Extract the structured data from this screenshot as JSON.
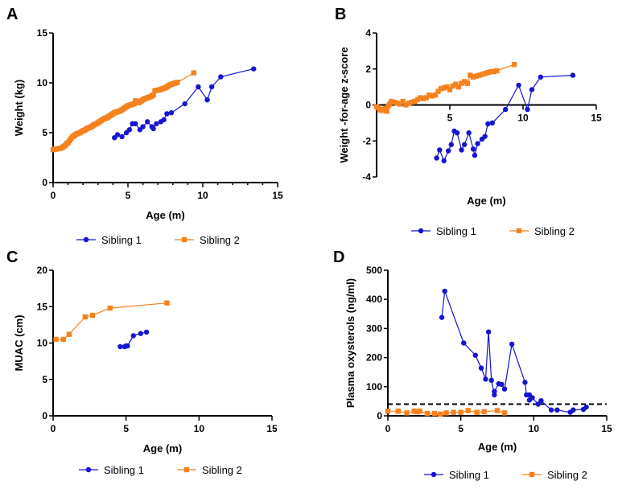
{
  "colors": {
    "sibling1": "#1414d2",
    "sibling2": "#f5821e",
    "axis": "#000000",
    "threshold": "#000000"
  },
  "legend": {
    "items": [
      {
        "label": "Sibling 1",
        "marker": "circle",
        "color": "#1414d2"
      },
      {
        "label": "Sibling 2",
        "marker": "square",
        "color": "#f5821e"
      }
    ]
  },
  "chart_data": [
    {
      "panel": "A",
      "type": "line",
      "title": "",
      "xlabel": "Age (m)",
      "ylabel": "Weight (kg)",
      "xlim": [
        0,
        15
      ],
      "ylim": [
        0,
        15
      ],
      "xticks": [
        0,
        5,
        10,
        15
      ],
      "yticks": [
        0,
        5,
        10,
        15
      ],
      "x_minor_ticks": 1,
      "legend_position": "bottom",
      "series": [
        {
          "name": "Sibling 1",
          "marker": "circle",
          "x": [
            4.1,
            4.3,
            4.6,
            4.9,
            5.1,
            5.3,
            5.5,
            5.8,
            6.0,
            6.3,
            6.6,
            6.7,
            6.9,
            7.2,
            7.4,
            7.6,
            7.9,
            8.8,
            9.7,
            10.3,
            10.6,
            11.2,
            13.4
          ],
          "y": [
            4.5,
            4.8,
            4.6,
            5.0,
            5.3,
            5.9,
            5.9,
            5.3,
            5.6,
            6.1,
            5.6,
            5.4,
            5.9,
            6.1,
            6.3,
            6.9,
            7.0,
            7.9,
            9.6,
            8.3,
            9.6,
            10.6,
            11.4
          ]
        },
        {
          "name": "Sibling 2",
          "marker": "square",
          "x": [
            0.0,
            0.1,
            0.2,
            0.3,
            0.4,
            0.5,
            0.6,
            0.7,
            0.8,
            0.9,
            1.0,
            1.1,
            1.2,
            1.3,
            1.4,
            1.5,
            1.6,
            1.7,
            1.8,
            1.9,
            2.0,
            2.1,
            2.2,
            2.3,
            2.4,
            2.5,
            2.6,
            2.7,
            2.8,
            2.9,
            3.0,
            3.1,
            3.2,
            3.3,
            3.4,
            3.5,
            3.6,
            3.7,
            3.8,
            3.9,
            4.0,
            4.1,
            4.2,
            4.3,
            4.4,
            4.5,
            4.6,
            4.7,
            4.8,
            4.9,
            5.0,
            5.1,
            5.2,
            5.3,
            5.4,
            5.5,
            5.6,
            5.7,
            5.8,
            5.9,
            6.0,
            6.1,
            6.2,
            6.3,
            6.4,
            6.5,
            6.6,
            6.7,
            6.8,
            6.9,
            7.0,
            7.1,
            7.2,
            7.3,
            7.4,
            7.5,
            7.6,
            7.7,
            7.8,
            7.9,
            8.0,
            8.1,
            8.2,
            8.3,
            9.4
          ],
          "y": [
            3.3,
            3.35,
            3.35,
            3.4,
            3.4,
            3.45,
            3.5,
            3.6,
            3.7,
            3.9,
            4.0,
            4.2,
            4.4,
            4.6,
            4.7,
            4.8,
            4.9,
            4.95,
            5.0,
            5.1,
            5.2,
            5.25,
            5.35,
            5.45,
            5.5,
            5.55,
            5.65,
            5.75,
            5.85,
            5.9,
            6.0,
            6.1,
            6.2,
            6.3,
            6.4,
            6.45,
            6.5,
            6.6,
            6.7,
            6.8,
            6.9,
            7.0,
            7.05,
            7.1,
            7.15,
            7.2,
            7.3,
            7.4,
            7.5,
            7.6,
            7.7,
            7.75,
            7.8,
            7.85,
            7.9,
            8.2,
            8.0,
            8.0,
            8.1,
            8.2,
            8.3,
            8.4,
            8.45,
            8.5,
            8.55,
            8.6,
            8.7,
            8.8,
            9.2,
            9.25,
            9.25,
            9.3,
            9.35,
            9.4,
            9.45,
            9.5,
            9.6,
            9.7,
            9.8,
            9.85,
            9.9,
            9.95,
            10.0,
            10.05,
            11.0
          ]
        }
      ]
    },
    {
      "panel": "B",
      "type": "line",
      "title": "",
      "xlabel": "Age (m)",
      "ylabel": "Weight -for-age z-score",
      "xlim": [
        0,
        15
      ],
      "ylim": [
        -4,
        4
      ],
      "xticks": [
        5,
        10,
        15
      ],
      "yticks": [
        -4,
        -2,
        0,
        2,
        4
      ],
      "legend_position": "bottom",
      "series": [
        {
          "name": "Sibling 1",
          "marker": "circle",
          "x": [
            4.1,
            4.3,
            4.6,
            4.9,
            5.1,
            5.3,
            5.5,
            5.8,
            6.0,
            6.3,
            6.6,
            6.7,
            6.9,
            7.2,
            7.4,
            7.6,
            7.9,
            8.8,
            9.7,
            10.3,
            10.6,
            11.2,
            13.4
          ],
          "y": [
            -2.95,
            -2.5,
            -3.1,
            -2.55,
            -2.2,
            -1.45,
            -1.55,
            -2.5,
            -2.2,
            -1.55,
            -2.45,
            -2.8,
            -2.15,
            -1.9,
            -1.75,
            -1.05,
            -1.0,
            -0.25,
            1.1,
            -0.25,
            0.85,
            1.55,
            1.65
          ]
        },
        {
          "name": "Sibling 2",
          "marker": "square",
          "x": [
            0.0,
            0.1,
            0.2,
            0.3,
            0.4,
            0.5,
            0.6,
            0.7,
            0.8,
            0.9,
            1.0,
            1.2,
            1.4,
            1.6,
            1.8,
            2.0,
            2.2,
            2.4,
            2.6,
            2.8,
            3.0,
            3.2,
            3.4,
            3.6,
            3.8,
            4.0,
            4.2,
            4.4,
            4.6,
            4.8,
            5.0,
            5.2,
            5.4,
            5.6,
            5.8,
            6.0,
            6.2,
            6.4,
            6.6,
            6.8,
            7.0,
            7.2,
            7.4,
            7.6,
            7.8,
            8.0,
            8.2,
            9.4
          ],
          "y": [
            -0.1,
            -0.15,
            -0.25,
            -0.3,
            -0.3,
            -0.25,
            -0.2,
            -0.35,
            -0.05,
            0.05,
            0.2,
            0.15,
            0.1,
            0.05,
            0.2,
            0.0,
            0.1,
            0.15,
            0.2,
            0.3,
            0.4,
            0.35,
            0.4,
            0.55,
            0.5,
            0.55,
            0.75,
            0.9,
            0.95,
            1.0,
            0.85,
            1.05,
            1.15,
            1.0,
            1.2,
            1.3,
            1.2,
            1.65,
            1.55,
            1.6,
            1.65,
            1.7,
            1.75,
            1.8,
            1.85,
            1.85,
            1.9,
            2.25
          ]
        }
      ]
    },
    {
      "panel": "C",
      "type": "line",
      "title": "",
      "xlabel": "Age (m)",
      "ylabel": "MUAC (cm)",
      "xlim": [
        0,
        15
      ],
      "ylim": [
        0,
        20
      ],
      "xticks": [
        0,
        5,
        10,
        15
      ],
      "yticks": [
        0,
        5,
        10,
        15,
        20
      ],
      "legend_position": "bottom",
      "series": [
        {
          "name": "Sibling 1",
          "marker": "circle",
          "x": [
            4.6,
            4.9,
            5.0,
            5.1,
            5.5,
            6.0,
            6.4
          ],
          "y": [
            9.5,
            9.5,
            9.6,
            9.6,
            11.0,
            11.3,
            11.5
          ]
        },
        {
          "name": "Sibling 2",
          "marker": "square",
          "x": [
            0.2,
            0.7,
            1.1,
            2.2,
            2.7,
            3.9,
            7.8
          ],
          "y": [
            10.5,
            10.5,
            11.2,
            13.6,
            13.8,
            14.8,
            15.5
          ]
        }
      ]
    },
    {
      "panel": "D",
      "type": "line",
      "title": "",
      "xlabel": "Age (m)",
      "ylabel": "Plasma oxysterols (ng/ml)",
      "xlim": [
        0,
        15
      ],
      "ylim": [
        0,
        500
      ],
      "xticks": [
        0,
        5,
        10,
        15
      ],
      "yticks": [
        0,
        100,
        200,
        300,
        400,
        500
      ],
      "threshold": {
        "y": 40,
        "style": "dashed"
      },
      "legend_position": "bottom",
      "series": [
        {
          "name": "Sibling 1",
          "marker": "circle",
          "x": [
            3.7,
            3.9,
            5.2,
            6.0,
            6.4,
            6.7,
            6.9,
            7.1,
            7.3,
            7.3,
            7.6,
            7.8,
            8.0,
            8.5,
            9.4,
            9.5,
            9.7,
            9.7,
            9.9,
            10.3,
            10.5,
            11.2,
            11.6,
            12.5,
            12.7,
            13.4,
            13.6
          ],
          "y": [
            338,
            428,
            250,
            208,
            164,
            126,
            288,
            122,
            72,
            84,
            110,
            108,
            92,
            246,
            115,
            72,
            72,
            54,
            62,
            40,
            52,
            20,
            20,
            12,
            20,
            22,
            30
          ]
        },
        {
          "name": "Sibling 2",
          "marker": "square",
          "x": [
            0.0,
            0.7,
            1.3,
            1.8,
            2.0,
            2.2,
            2.7,
            3.2,
            3.6,
            4.0,
            4.5,
            5.0,
            5.5,
            6.1,
            6.6,
            7.5,
            8.0
          ],
          "y": [
            16,
            16,
            10,
            16,
            14,
            16,
            8,
            8,
            6,
            10,
            12,
            12,
            18,
            12,
            14,
            18,
            10
          ]
        }
      ]
    }
  ]
}
